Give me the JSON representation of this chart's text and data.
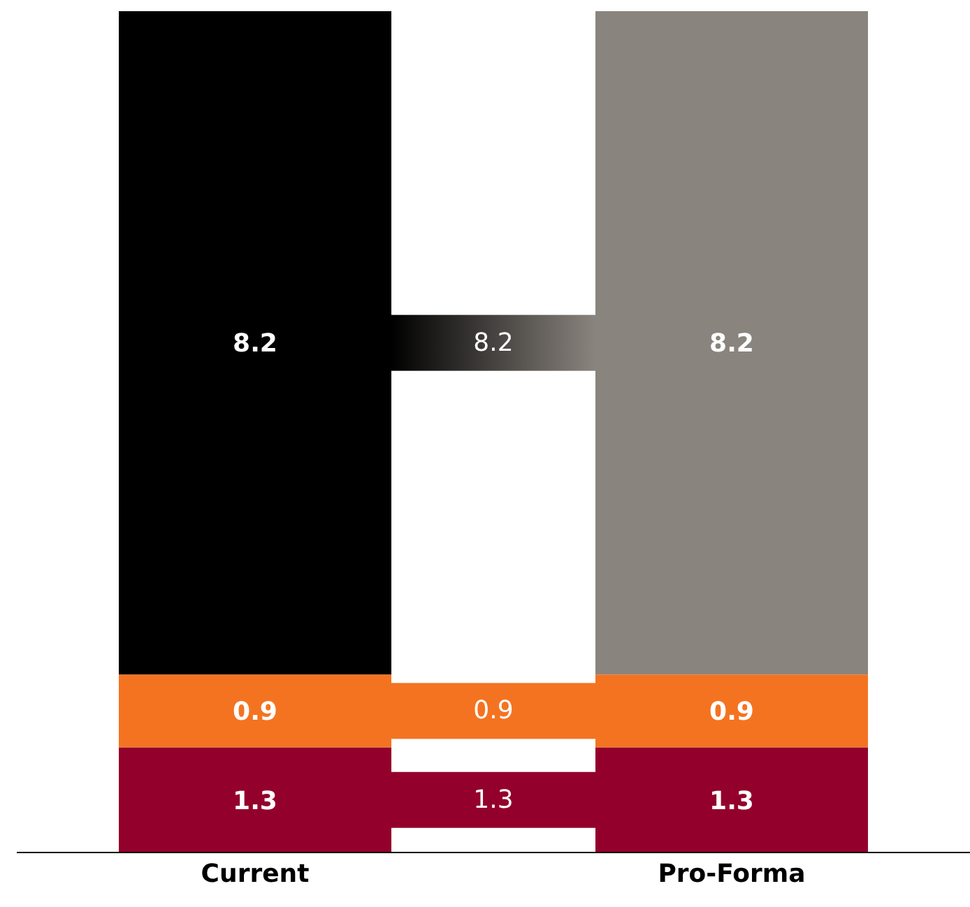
{
  "chart_data": {
    "type": "bar",
    "stacked": true,
    "categories": [
      "Current",
      "Pro-Forma"
    ],
    "series": [
      {
        "values": [
          1.3,
          1.3
        ],
        "color": "#93002b"
      },
      {
        "values": [
          0.9,
          0.9
        ],
        "color": "#f47321"
      },
      {
        "values": [
          8.2,
          8.2
        ],
        "colors": [
          "#000000",
          "#8a847e"
        ]
      }
    ],
    "data_labels": true,
    "annotations": [
      "8.2",
      "0.9",
      "1.3"
    ]
  }
}
